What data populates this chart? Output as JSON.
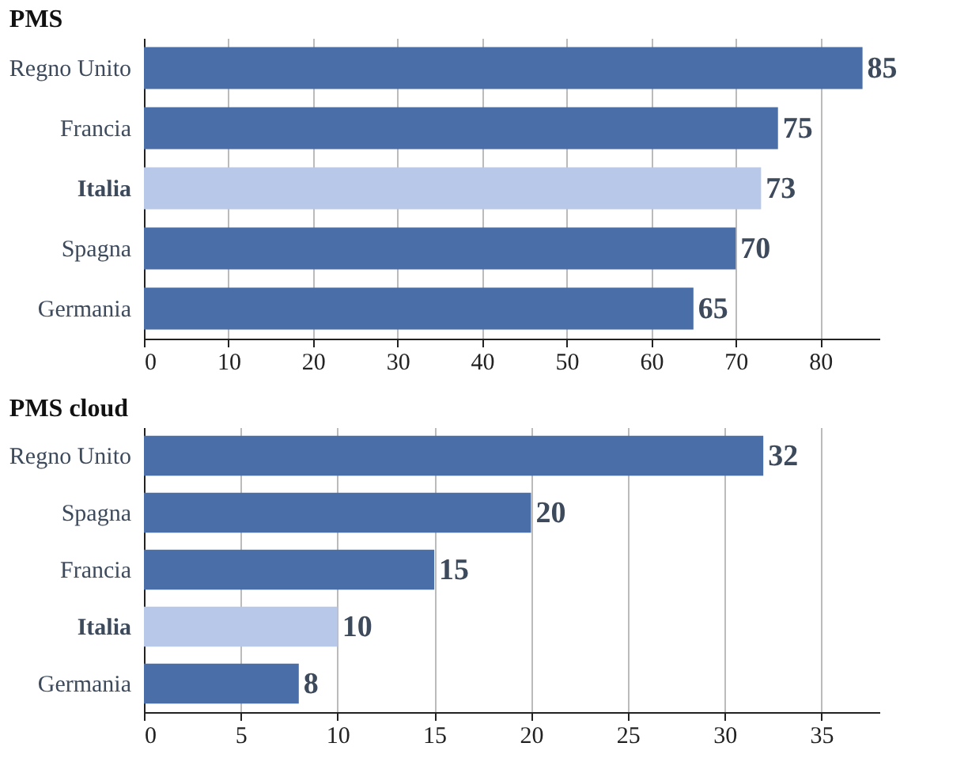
{
  "chart_data": [
    {
      "type": "bar",
      "orientation": "horizontal",
      "title": "PMS",
      "categories": [
        "Regno Unito",
        "Francia",
        "Italia",
        "Spagna",
        "Germania"
      ],
      "values": [
        85,
        75,
        73,
        70,
        65
      ],
      "colors": [
        "#4a6fa8",
        "#4a6fa8",
        "#b8c8e8",
        "#4a6fa8",
        "#4a6fa8"
      ],
      "xlim": [
        0,
        87
      ],
      "xticks": [
        0,
        10,
        20,
        30,
        40,
        50,
        60,
        70,
        80
      ],
      "grid": "x",
      "data_labels": true
    },
    {
      "type": "bar",
      "orientation": "horizontal",
      "title": "PMS cloud",
      "categories": [
        "Regno Unito",
        "Spagna",
        "Francia",
        "Italia",
        "Germania"
      ],
      "values": [
        32,
        20,
        15,
        10,
        8
      ],
      "colors": [
        "#4a6fa8",
        "#4a6fa8",
        "#4a6fa8",
        "#b8c8e8",
        "#4a6fa8"
      ],
      "xlim": [
        0,
        38
      ],
      "xticks": [
        0,
        5,
        10,
        15,
        20,
        25,
        30,
        35
      ],
      "grid": "x",
      "data_labels": true
    }
  ]
}
